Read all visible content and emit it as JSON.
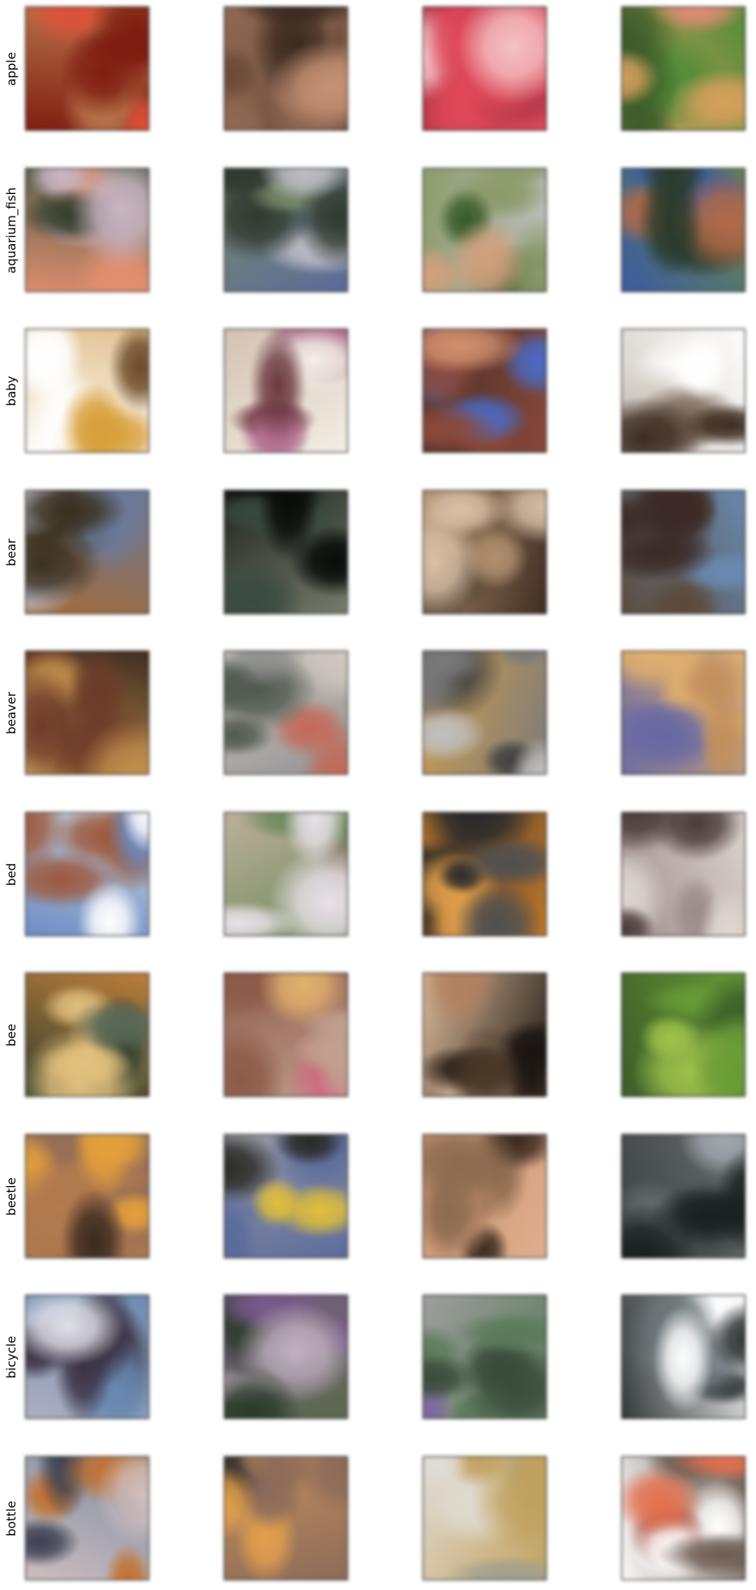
{
  "rows": [
    {
      "label": "apple",
      "cells": [
        {
          "description": "generated sample",
          "palette": [
            "#7a1d12",
            "#d9503a",
            "#3d0f08",
            "#b8784e"
          ]
        },
        {
          "description": "generated sample",
          "palette": [
            "#6b4a3a",
            "#c49277",
            "#3a2a20",
            "#8f6a55"
          ]
        },
        {
          "description": "generated sample",
          "palette": [
            "#d94a5a",
            "#f3c2c4",
            "#ffffff",
            "#b2394a"
          ]
        },
        {
          "description": "generated sample",
          "palette": [
            "#4f8a3a",
            "#e28c7a",
            "#3a5a2a",
            "#d4a060"
          ]
        }
      ]
    },
    {
      "label": "aquarium_fish",
      "cells": [
        {
          "description": "generated sample",
          "palette": [
            "#4a5a4a",
            "#c8b6c4",
            "#2a3a2a",
            "#e09070"
          ]
        },
        {
          "description": "generated sample",
          "palette": [
            "#7a8a6a",
            "#c0c0c8",
            "#303a30",
            "#5a6a9a"
          ]
        },
        {
          "description": "generated sample",
          "palette": [
            "#8a9a6a",
            "#d0a080",
            "#3a5a2a",
            "#c0c0c0"
          ]
        },
        {
          "description": "generated sample",
          "palette": [
            "#3a5aa0",
            "#b06a4a",
            "#2a3a2a",
            "#6a8a4a"
          ]
        }
      ]
    },
    {
      "label": "baby",
      "cells": [
        {
          "description": "generated sample",
          "palette": [
            "#ffffff",
            "#d6a040",
            "#6a4a2a",
            "#e0c090"
          ]
        },
        {
          "description": "generated sample",
          "palette": [
            "#f4f0e8",
            "#6a3a40",
            "#b07090",
            "#d0c0b0"
          ]
        },
        {
          "description": "generated sample",
          "palette": [
            "#8a4a3a",
            "#4a6ac0",
            "#d09070",
            "#3a2a2a"
          ]
        },
        {
          "description": "generated sample",
          "palette": [
            "#ffffff",
            "#7a6a5a",
            "#3a2a20",
            "#d0c8c0"
          ]
        }
      ]
    },
    {
      "label": "bear",
      "cells": [
        {
          "description": "generated sample",
          "palette": [
            "#6a7a9a",
            "#3a3020",
            "#c0c0d0",
            "#a06a3a"
          ]
        },
        {
          "description": "generated sample",
          "palette": [
            "#1a201a",
            "#3a4a40",
            "#0a0c0a",
            "#7a8070"
          ]
        },
        {
          "description": "generated sample",
          "palette": [
            "#b09070",
            "#5a4a3a",
            "#d8c0a8",
            "#3a2a20"
          ]
        },
        {
          "description": "generated sample",
          "palette": [
            "#5a4a3a",
            "#a08060",
            "#3a2a25",
            "#6a8ab0"
          ]
        }
      ]
    },
    {
      "label": "beaver",
      "cells": [
        {
          "description": "generated sample",
          "palette": [
            "#c09050",
            "#6a3a2a",
            "#e0b070",
            "#3a2a20"
          ]
        },
        {
          "description": "generated sample",
          "palette": [
            "#909090",
            "#c06a5a",
            "#505a50",
            "#d0c8c0"
          ]
        },
        {
          "description": "generated sample",
          "palette": [
            "#7a7a7a",
            "#404040",
            "#c0c0c0",
            "#d0a050"
          ]
        },
        {
          "description": "generated sample",
          "palette": [
            "#e0b070",
            "#5a3a4a",
            "#c09060",
            "#6a6aa0"
          ]
        }
      ]
    },
    {
      "label": "bed",
      "cells": [
        {
          "description": "generated sample",
          "palette": [
            "#d0d8e0",
            "#9a5a40",
            "#ffffff",
            "#6a8ac0"
          ]
        },
        {
          "description": "generated sample",
          "palette": [
            "#c0b0a0",
            "#8a7a6a",
            "#e8e0e8",
            "#6a8a5a"
          ]
        },
        {
          "description": "generated sample",
          "palette": [
            "#2a2a2a",
            "#e0a050",
            "#505050",
            "#c07a30"
          ]
        },
        {
          "description": "generated sample",
          "palette": [
            "#9a8a8a",
            "#c0b0b0",
            "#4a3a3a",
            "#e0d8d0"
          ]
        }
      ]
    },
    {
      "label": "bee",
      "cells": [
        {
          "description": "generated sample",
          "palette": [
            "#2a3a2a",
            "#e0c080",
            "#5a6a5a",
            "#c08040"
          ]
        },
        {
          "description": "generated sample",
          "palette": [
            "#c0a090",
            "#d06080",
            "#e0b070",
            "#8a5a4a"
          ]
        },
        {
          "description": "generated sample",
          "palette": [
            "#1a1410",
            "#b08060",
            "#4a3a2a",
            "#e0c0a0"
          ]
        },
        {
          "description": "generated sample",
          "palette": [
            "#6a9a3a",
            "#d050c0",
            "#a0c050",
            "#3a5a2a"
          ]
        }
      ]
    },
    {
      "label": "beetle",
      "cells": [
        {
          "description": "generated sample",
          "palette": [
            "#8a6a5a",
            "#e0a040",
            "#3a2a20",
            "#b07a50"
          ]
        },
        {
          "description": "generated sample",
          "palette": [
            "#9a9aa0",
            "#2a2a25",
            "#e0c040",
            "#5a6a9a"
          ]
        },
        {
          "description": "generated sample",
          "palette": [
            "#c09070",
            "#3a2a20",
            "#8a6a50",
            "#e0b090"
          ]
        },
        {
          "description": "generated sample",
          "palette": [
            "#3a4040",
            "#a0a8b0",
            "#1a2020",
            "#6a7070"
          ]
        }
      ]
    },
    {
      "label": "bicycle",
      "cells": [
        {
          "description": "generated sample",
          "palette": [
            "#b0b0c0",
            "#3a3040",
            "#e0e0e8",
            "#6a8ab0"
          ]
        },
        {
          "description": "generated sample",
          "palette": [
            "#5a6a4a",
            "#c0b0c0",
            "#2a3a2a",
            "#7a5a8a"
          ]
        },
        {
          "description": "generated sample",
          "palette": [
            "#5a7a5a",
            "#7a6a9a",
            "#3a4a3a",
            "#a0a0a0"
          ]
        },
        {
          "description": "generated sample",
          "palette": [
            "#ffffff",
            "#4a5050",
            "#707a80",
            "#2a3030"
          ]
        }
      ]
    },
    {
      "label": "bottle",
      "cells": [
        {
          "description": "generated sample",
          "palette": [
            "#7a8aa0",
            "#c07030",
            "#3a4050",
            "#d0c0c0"
          ]
        },
        {
          "description": "generated sample",
          "palette": [
            "#c09060",
            "#2a2a2a",
            "#e0a050",
            "#8a6a5a"
          ]
        },
        {
          "description": "generated sample",
          "palette": [
            "#e0dcd4",
            "#a0a090",
            "#3a3a2a",
            "#c0a060"
          ]
        },
        {
          "description": "generated sample",
          "palette": [
            "#ffffff",
            "#a03a2a",
            "#e07050",
            "#6a5a50"
          ]
        }
      ]
    }
  ]
}
